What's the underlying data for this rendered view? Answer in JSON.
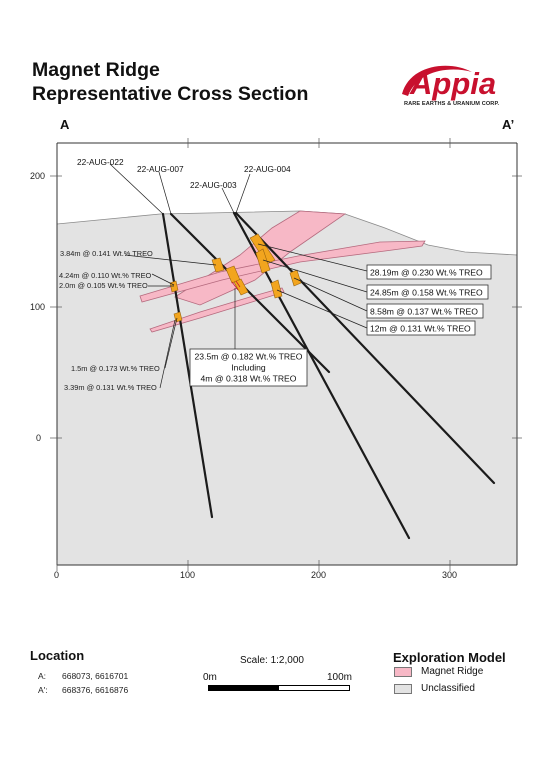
{
  "title": {
    "line1": "Magnet Ridge",
    "line2": "Representative Cross Section"
  },
  "logo": {
    "word": "Appia",
    "tagline": "RARE EARTHS & URANIUM CORP."
  },
  "section_ends": {
    "left": "A",
    "right": "A’"
  },
  "axes": {
    "y_ticks": [
      "200",
      "100",
      "0"
    ],
    "x_ticks": [
      "0",
      "100",
      "200",
      "300"
    ]
  },
  "drillholes": [
    {
      "id": "22-AUG-022"
    },
    {
      "id": "22-AUG-007"
    },
    {
      "id": "22-AUG-003"
    },
    {
      "id": "22-AUG-004"
    }
  ],
  "intercepts_left": [
    "3.84m @ 0.141 Wt.% TREO",
    "4.24m @ 0.110 Wt.% TREO",
    "2.0m @ 0.105 Wt.% TREO",
    "1.5m @ 0.173 Wt.% TREO",
    "3.39m @ 0.131 Wt.% TREO"
  ],
  "intercepts_right": [
    "28.19m @ 0.230 Wt.% TREO",
    "24.85m @ 0.158 Wt.% TREO",
    "8.58m @ 0.137 Wt.% TREO",
    "12m @ 0.131 Wt.% TREO"
  ],
  "intercept_center": {
    "line1": "23.5m @ 0.182 Wt.% TREO",
    "line2": "Including",
    "line3": "4m @ 0.318 Wt.% TREO"
  },
  "location": {
    "title": "Location",
    "a_key": "A:",
    "a_value": "668073, 6616701",
    "b_key": "A':",
    "b_value": "668376, 6616876"
  },
  "scale": {
    "label": "Scale: 1:2,000",
    "start": "0m",
    "end": "100m"
  },
  "legend": {
    "title": "Exploration Model",
    "items": [
      {
        "label": "Magnet Ridge",
        "color": "#f7b8c6"
      },
      {
        "label": "Unclassified",
        "color": "#e3e3e3"
      }
    ]
  },
  "colors": {
    "logo_red": "#c8102e",
    "ore_orange": "#f2a51e",
    "frame": "#333333"
  }
}
